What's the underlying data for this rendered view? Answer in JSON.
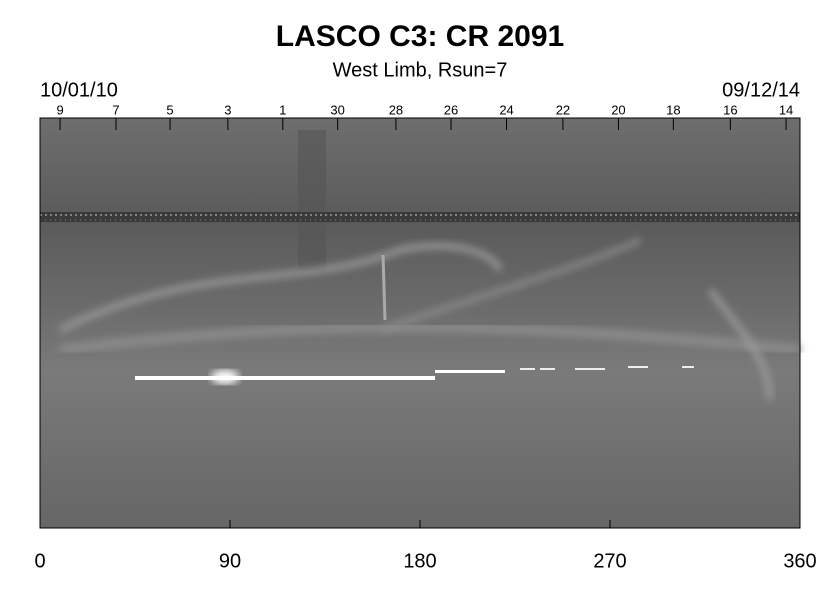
{
  "chart_data": {
    "type": "synoptic-map",
    "title": "LASCO C3: CR 2091",
    "subtitle": "West Limb, Rsun=7",
    "start_date": "10/01/10",
    "end_date": "09/12/14",
    "xlim": [
      0,
      360
    ],
    "xticks": [
      0,
      90,
      180,
      270,
      360
    ],
    "top_ticks": [
      {
        "value": 9.5,
        "label": "9"
      },
      {
        "value": 36,
        "label": "7"
      },
      {
        "value": 61.6,
        "label": "5"
      },
      {
        "value": 89,
        "label": "3"
      },
      {
        "value": 115,
        "label": "1"
      },
      {
        "value": 141,
        "label": "30"
      },
      {
        "value": 168.6,
        "label": "28"
      },
      {
        "value": 194.7,
        "label": "26"
      },
      {
        "value": 221,
        "label": "24"
      },
      {
        "value": 247.7,
        "label": "22"
      },
      {
        "value": 274,
        "label": "20"
      },
      {
        "value": 300,
        "label": "18"
      },
      {
        "value": 327,
        "label": "16"
      },
      {
        "value": 353.4,
        "label": "14"
      }
    ]
  }
}
